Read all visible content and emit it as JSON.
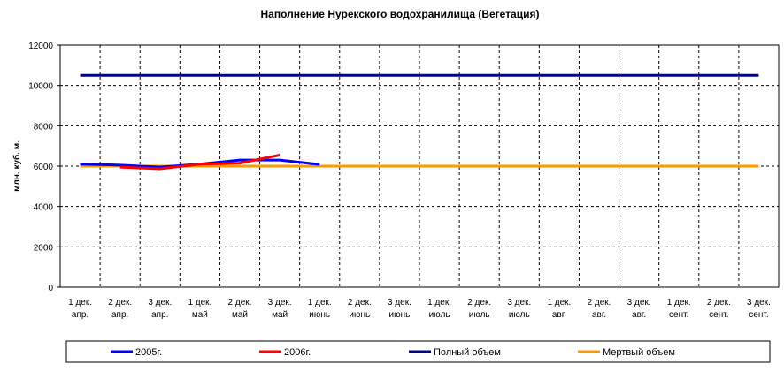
{
  "chart_data": {
    "type": "line",
    "title": "Наполнение Нурекского водохранилища (Вегетация)",
    "y_label": "млн. куб. м.",
    "categories": [
      [
        "1 дек.",
        "апр."
      ],
      [
        "2 дек.",
        "апр."
      ],
      [
        "3 дек.",
        "апр."
      ],
      [
        "1 дек.",
        "май"
      ],
      [
        "2 дек.",
        "май"
      ],
      [
        "3 дек.",
        "май"
      ],
      [
        "1 дек.",
        "июнь"
      ],
      [
        "2 дек.",
        "июнь"
      ],
      [
        "3 дек.",
        "июнь"
      ],
      [
        "1 дек.",
        "июль"
      ],
      [
        "2 дек.",
        "июль"
      ],
      [
        "3 дек.",
        "июль"
      ],
      [
        "1 дек.",
        "авг."
      ],
      [
        "2 дек.",
        "авг."
      ],
      [
        "3 дек.",
        "авг."
      ],
      [
        "1 дек.",
        "сент."
      ],
      [
        "2 дек.",
        "сент."
      ],
      [
        "3 дек.",
        "сент."
      ]
    ],
    "series": [
      {
        "name": "2005г.",
        "color": "#0000ff",
        "values": [
          6100,
          6050,
          5950,
          6100,
          6300,
          6300,
          6080,
          null,
          null,
          null,
          null,
          null,
          null,
          null,
          null,
          null,
          null,
          null
        ]
      },
      {
        "name": "2006г.",
        "color": "#ff0000",
        "values": [
          null,
          5950,
          5870,
          6100,
          6150,
          6550,
          null,
          null,
          null,
          null,
          null,
          null,
          null,
          null,
          null,
          null,
          null,
          null
        ]
      },
      {
        "name": "Полный объем",
        "color": "#000080",
        "values": [
          10500,
          10500,
          10500,
          10500,
          10500,
          10500,
          10500,
          10500,
          10500,
          10500,
          10500,
          10500,
          10500,
          10500,
          10500,
          10500,
          10500,
          10500
        ]
      },
      {
        "name": "Мертвый объем",
        "color": "#ff9900",
        "values": [
          6000,
          6000,
          6000,
          6000,
          6000,
          6000,
          6000,
          6000,
          6000,
          6000,
          6000,
          6000,
          6000,
          6000,
          6000,
          6000,
          6000,
          6000
        ]
      }
    ],
    "ylim": [
      0,
      12000
    ],
    "yticks": [
      0,
      2000,
      4000,
      6000,
      8000,
      10000,
      12000
    ],
    "grid": true
  }
}
